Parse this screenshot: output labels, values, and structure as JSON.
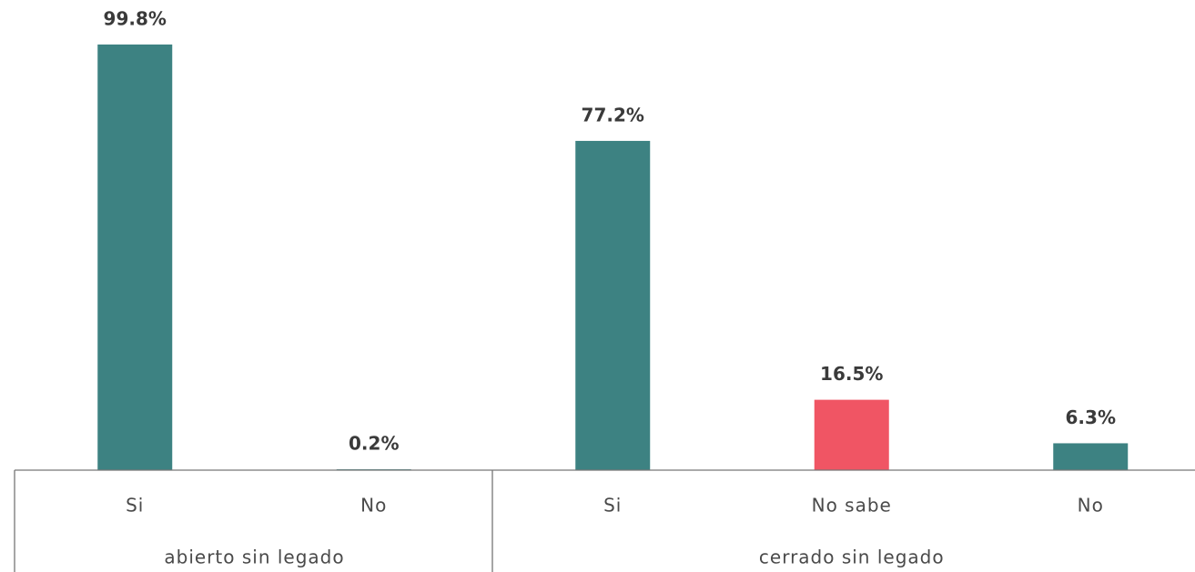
{
  "chart_data": {
    "type": "bar",
    "categories": [
      "Si",
      "No",
      "Si",
      "No sabe",
      "No"
    ],
    "values": [
      99.8,
      0.2,
      77.2,
      16.5,
      6.3
    ],
    "value_labels": [
      "99.8%",
      "0.2%",
      "77.2%",
      "16.5%",
      "6.3%"
    ],
    "colors": [
      "#3d8282",
      "#3d8282",
      "#3d8282",
      "#f05564",
      "#3d8282"
    ],
    "groups": [
      {
        "name": "abierto sin legado",
        "count": 2
      },
      {
        "name": "cerrado sin legado",
        "count": 3
      }
    ],
    "ylim": [
      0,
      100
    ]
  }
}
